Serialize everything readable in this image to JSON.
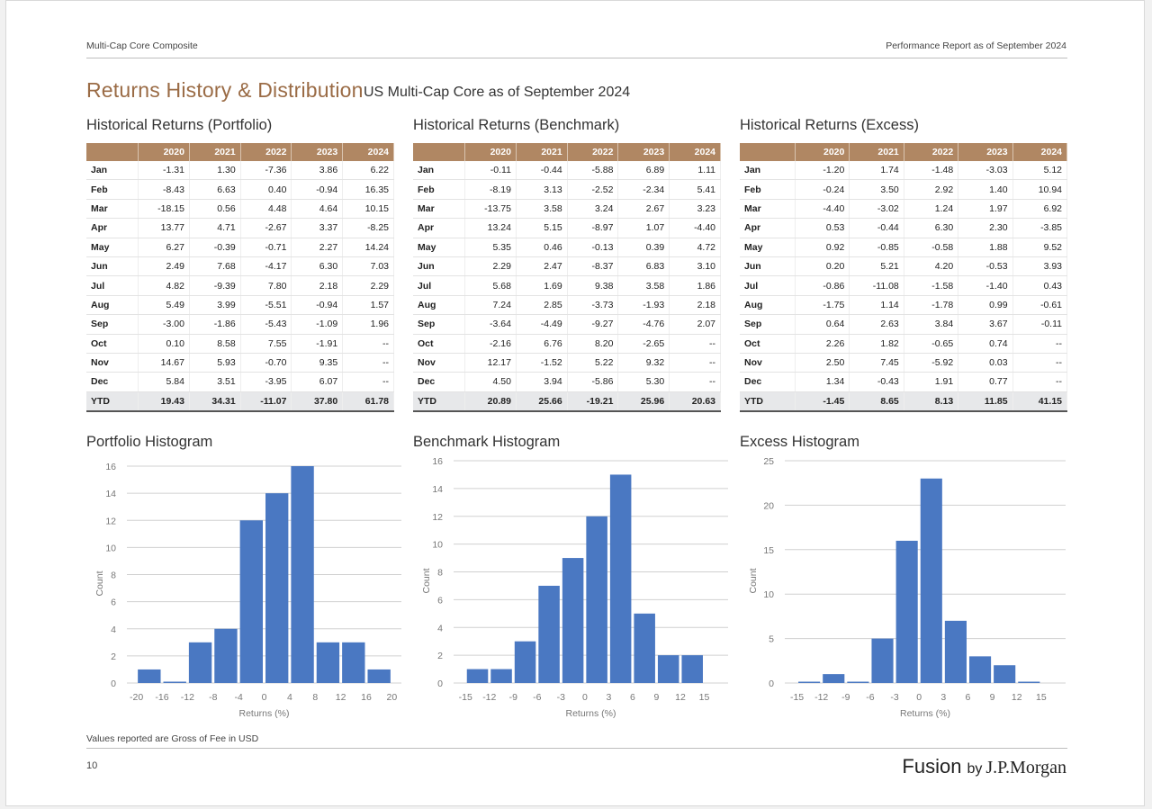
{
  "header": {
    "left": "Multi-Cap Core Composite",
    "right": "Performance Report as of September 2024"
  },
  "title": "Returns History & Distribution",
  "subtitle": "US Multi-Cap Core as of September 2024",
  "colors": {
    "accent": "#9a6b45",
    "table_header": "#b08763",
    "bar": "#4a78c2"
  },
  "tables": [
    {
      "title": "Historical Returns (Portfolio)",
      "years": [
        "2020",
        "2021",
        "2022",
        "2023",
        "2024"
      ],
      "rows": [
        [
          "Jan",
          "-1.31",
          "1.30",
          "-7.36",
          "3.86",
          "6.22"
        ],
        [
          "Feb",
          "-8.43",
          "6.63",
          "0.40",
          "-0.94",
          "16.35"
        ],
        [
          "Mar",
          "-18.15",
          "0.56",
          "4.48",
          "4.64",
          "10.15"
        ],
        [
          "Apr",
          "13.77",
          "4.71",
          "-2.67",
          "3.37",
          "-8.25"
        ],
        [
          "May",
          "6.27",
          "-0.39",
          "-0.71",
          "2.27",
          "14.24"
        ],
        [
          "Jun",
          "2.49",
          "7.68",
          "-4.17",
          "6.30",
          "7.03"
        ],
        [
          "Jul",
          "4.82",
          "-9.39",
          "7.80",
          "2.18",
          "2.29"
        ],
        [
          "Aug",
          "5.49",
          "3.99",
          "-5.51",
          "-0.94",
          "1.57"
        ],
        [
          "Sep",
          "-3.00",
          "-1.86",
          "-5.43",
          "-1.09",
          "1.96"
        ],
        [
          "Oct",
          "0.10",
          "8.58",
          "7.55",
          "-1.91",
          "--"
        ],
        [
          "Nov",
          "14.67",
          "5.93",
          "-0.70",
          "9.35",
          "--"
        ],
        [
          "Dec",
          "5.84",
          "3.51",
          "-3.95",
          "6.07",
          "--"
        ]
      ],
      "ytd": [
        "YTD",
        "19.43",
        "34.31",
        "-11.07",
        "37.80",
        "61.78"
      ]
    },
    {
      "title": "Historical Returns (Benchmark)",
      "years": [
        "2020",
        "2021",
        "2022",
        "2023",
        "2024"
      ],
      "rows": [
        [
          "Jan",
          "-0.11",
          "-0.44",
          "-5.88",
          "6.89",
          "1.11"
        ],
        [
          "Feb",
          "-8.19",
          "3.13",
          "-2.52",
          "-2.34",
          "5.41"
        ],
        [
          "Mar",
          "-13.75",
          "3.58",
          "3.24",
          "2.67",
          "3.23"
        ],
        [
          "Apr",
          "13.24",
          "5.15",
          "-8.97",
          "1.07",
          "-4.40"
        ],
        [
          "May",
          "5.35",
          "0.46",
          "-0.13",
          "0.39",
          "4.72"
        ],
        [
          "Jun",
          "2.29",
          "2.47",
          "-8.37",
          "6.83",
          "3.10"
        ],
        [
          "Jul",
          "5.68",
          "1.69",
          "9.38",
          "3.58",
          "1.86"
        ],
        [
          "Aug",
          "7.24",
          "2.85",
          "-3.73",
          "-1.93",
          "2.18"
        ],
        [
          "Sep",
          "-3.64",
          "-4.49",
          "-9.27",
          "-4.76",
          "2.07"
        ],
        [
          "Oct",
          "-2.16",
          "6.76",
          "8.20",
          "-2.65",
          "--"
        ],
        [
          "Nov",
          "12.17",
          "-1.52",
          "5.22",
          "9.32",
          "--"
        ],
        [
          "Dec",
          "4.50",
          "3.94",
          "-5.86",
          "5.30",
          "--"
        ]
      ],
      "ytd": [
        "YTD",
        "20.89",
        "25.66",
        "-19.21",
        "25.96",
        "20.63"
      ]
    },
    {
      "title": "Historical Returns (Excess)",
      "years": [
        "2020",
        "2021",
        "2022",
        "2023",
        "2024"
      ],
      "rows": [
        [
          "Jan",
          "-1.20",
          "1.74",
          "-1.48",
          "-3.03",
          "5.12"
        ],
        [
          "Feb",
          "-0.24",
          "3.50",
          "2.92",
          "1.40",
          "10.94"
        ],
        [
          "Mar",
          "-4.40",
          "-3.02",
          "1.24",
          "1.97",
          "6.92"
        ],
        [
          "Apr",
          "0.53",
          "-0.44",
          "6.30",
          "2.30",
          "-3.85"
        ],
        [
          "May",
          "0.92",
          "-0.85",
          "-0.58",
          "1.88",
          "9.52"
        ],
        [
          "Jun",
          "0.20",
          "5.21",
          "4.20",
          "-0.53",
          "3.93"
        ],
        [
          "Jul",
          "-0.86",
          "-11.08",
          "-1.58",
          "-1.40",
          "0.43"
        ],
        [
          "Aug",
          "-1.75",
          "1.14",
          "-1.78",
          "0.99",
          "-0.61"
        ],
        [
          "Sep",
          "0.64",
          "2.63",
          "3.84",
          "3.67",
          "-0.11"
        ],
        [
          "Oct",
          "2.26",
          "1.82",
          "-0.65",
          "0.74",
          "--"
        ],
        [
          "Nov",
          "2.50",
          "7.45",
          "-5.92",
          "0.03",
          "--"
        ],
        [
          "Dec",
          "1.34",
          "-0.43",
          "1.91",
          "0.77",
          "--"
        ]
      ],
      "ytd": [
        "YTD",
        "-1.45",
        "8.65",
        "8.13",
        "11.85",
        "41.15"
      ]
    }
  ],
  "chart_data": [
    {
      "type": "bar",
      "title": "Portfolio Histogram",
      "xlabel": "Returns (%)",
      "ylabel": "Count",
      "x_ticks": [
        -20,
        -16,
        -12,
        -8,
        -4,
        0,
        4,
        8,
        12,
        16,
        20
      ],
      "y_ticks": [
        0,
        2,
        4,
        6,
        8,
        10,
        12,
        14,
        16
      ],
      "xlim": [
        -21.5,
        21.5
      ],
      "ylim": [
        0,
        16
      ],
      "bin_width": 4,
      "bins": [
        {
          "center": -18,
          "count": 1
        },
        {
          "center": -14,
          "count": 0.1
        },
        {
          "center": -10,
          "count": 3
        },
        {
          "center": -6,
          "count": 4
        },
        {
          "center": -2,
          "count": 12
        },
        {
          "center": 2,
          "count": 14
        },
        {
          "center": 6,
          "count": 16
        },
        {
          "center": 10,
          "count": 3
        },
        {
          "center": 14,
          "count": 3
        },
        {
          "center": 18,
          "count": 1
        }
      ],
      "grid": true
    },
    {
      "type": "bar",
      "title": "Benchmark Histogram",
      "xlabel": "Returns (%)",
      "ylabel": "Count",
      "x_ticks": [
        -15,
        -12,
        -9,
        -6,
        -3,
        0,
        3,
        6,
        9,
        12,
        15
      ],
      "y_ticks": [
        0,
        2,
        4,
        6,
        8,
        10,
        12,
        14,
        16
      ],
      "xlim": [
        -16.5,
        18.0
      ],
      "ylim": [
        0,
        16
      ],
      "bin_width": 3,
      "bins": [
        {
          "center": -13.5,
          "count": 1
        },
        {
          "center": -10.5,
          "count": 1
        },
        {
          "center": -7.5,
          "count": 3
        },
        {
          "center": -4.5,
          "count": 7
        },
        {
          "center": -1.5,
          "count": 9
        },
        {
          "center": 1.5,
          "count": 12
        },
        {
          "center": 4.5,
          "count": 15
        },
        {
          "center": 7.5,
          "count": 5
        },
        {
          "center": 10.5,
          "count": 2
        },
        {
          "center": 13.5,
          "count": 2
        }
      ],
      "grid": true
    },
    {
      "type": "bar",
      "title": "Excess Histogram",
      "xlabel": "Returns (%)",
      "ylabel": "Count",
      "x_ticks": [
        -15,
        -12,
        -9,
        -6,
        -3,
        0,
        3,
        6,
        9,
        12,
        15
      ],
      "y_ticks": [
        0,
        5,
        10,
        15,
        20,
        25
      ],
      "xlim": [
        -16.5,
        18.0
      ],
      "ylim": [
        0,
        25
      ],
      "bin_width": 3,
      "bins": [
        {
          "center": -13.5,
          "count": 0.15
        },
        {
          "center": -10.5,
          "count": 1
        },
        {
          "center": -7.5,
          "count": 0.15
        },
        {
          "center": -4.5,
          "count": 5
        },
        {
          "center": -1.5,
          "count": 16
        },
        {
          "center": 1.5,
          "count": 23
        },
        {
          "center": 4.5,
          "count": 7
        },
        {
          "center": 7.5,
          "count": 3
        },
        {
          "center": 10.5,
          "count": 2
        },
        {
          "center": 13.5,
          "count": 0.15
        }
      ],
      "grid": true
    }
  ],
  "footnote": "Values reported are Gross of Fee in USD",
  "page_number": "10",
  "logo": {
    "brand": "Fusion",
    "by": "by",
    "company": "J.P.Morgan"
  }
}
